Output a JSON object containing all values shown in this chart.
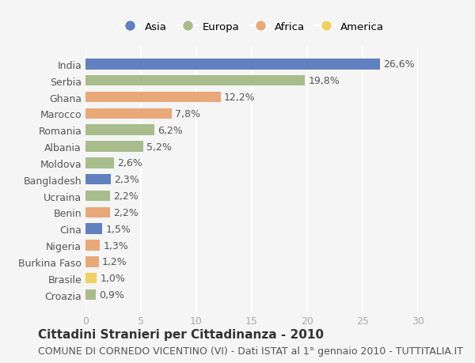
{
  "countries": [
    "India",
    "Serbia",
    "Ghana",
    "Marocco",
    "Romania",
    "Albania",
    "Moldova",
    "Bangladesh",
    "Ucraina",
    "Benin",
    "Cina",
    "Nigeria",
    "Burkina Faso",
    "Brasile",
    "Croazia"
  ],
  "values": [
    26.6,
    19.8,
    12.2,
    7.8,
    6.2,
    5.2,
    2.6,
    2.3,
    2.2,
    2.2,
    1.5,
    1.3,
    1.2,
    1.0,
    0.9
  ],
  "labels": [
    "26,6%",
    "19,8%",
    "12,2%",
    "7,8%",
    "6,2%",
    "5,2%",
    "2,6%",
    "2,3%",
    "2,2%",
    "2,2%",
    "1,5%",
    "1,3%",
    "1,2%",
    "1,0%",
    "0,9%"
  ],
  "continents": [
    "Asia",
    "Europa",
    "Africa",
    "Africa",
    "Europa",
    "Europa",
    "Europa",
    "Asia",
    "Europa",
    "Africa",
    "Asia",
    "Africa",
    "Africa",
    "America",
    "Europa"
  ],
  "colors": {
    "Asia": "#6080c0",
    "Europa": "#a8bc8c",
    "Africa": "#e8a878",
    "America": "#f0d060"
  },
  "legend_order": [
    "Asia",
    "Europa",
    "Africa",
    "America"
  ],
  "xlim": [
    0,
    30
  ],
  "xticks": [
    0,
    5,
    10,
    15,
    20,
    25,
    30
  ],
  "title": "Cittadini Stranieri per Cittadinanza - 2010",
  "subtitle": "COMUNE DI CORNEDO VICENTINO (VI) - Dati ISTAT al 1° gennaio 2010 - TUTTITALIA.IT",
  "bg_color": "#f5f5f5",
  "grid_color": "#ffffff",
  "bar_height": 0.65,
  "label_fontsize": 9,
  "tick_fontsize": 9,
  "title_fontsize": 11,
  "subtitle_fontsize": 9
}
